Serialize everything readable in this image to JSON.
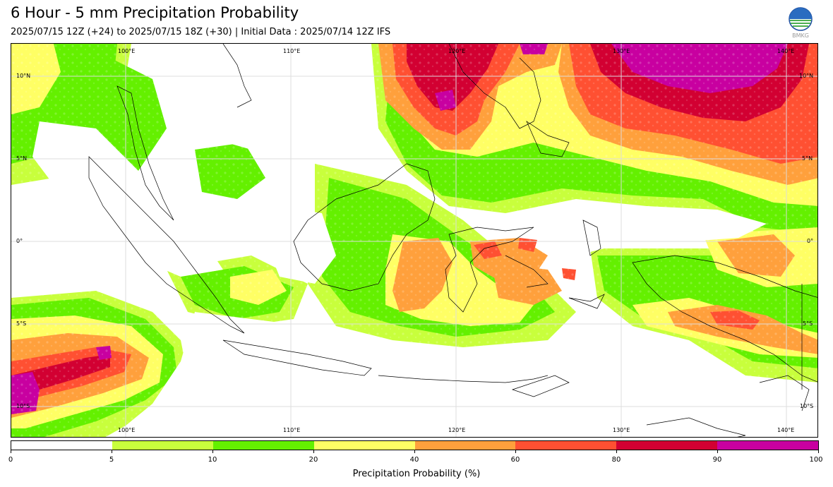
{
  "header": {
    "title": "6 Hour - 5 mm Precipitation Probability",
    "subtitle": "2025/07/15 12Z (+24) to 2025/07/15 18Z (+30) | Initial Data : 2025/07/14 12Z IFS",
    "logo_text": "BMKG"
  },
  "map": {
    "lon_labels": [
      "100°E",
      "110°E",
      "120°E",
      "130°E",
      "140°E"
    ],
    "lat_labels": [
      "10°N",
      "5°N",
      "0°",
      "5°S",
      "10°S"
    ],
    "colors": {
      "c5": "#c8ff3c",
      "c10": "#64f000",
      "c20": "#ffff64",
      "c40": "#ffa03c",
      "c60": "#ff5032",
      "c80": "#d20032",
      "c90": "#c800a0"
    }
  },
  "colorbar": {
    "ticks": [
      "0",
      "5",
      "10",
      "20",
      "40",
      "60",
      "80",
      "90",
      "100"
    ],
    "label": "Precipitation Probability (%)",
    "segment_colors": [
      "#ffffff",
      "#c8ff3c",
      "#64f000",
      "#ffff64",
      "#ffa03c",
      "#ff5032",
      "#d20032",
      "#c800a0"
    ]
  }
}
